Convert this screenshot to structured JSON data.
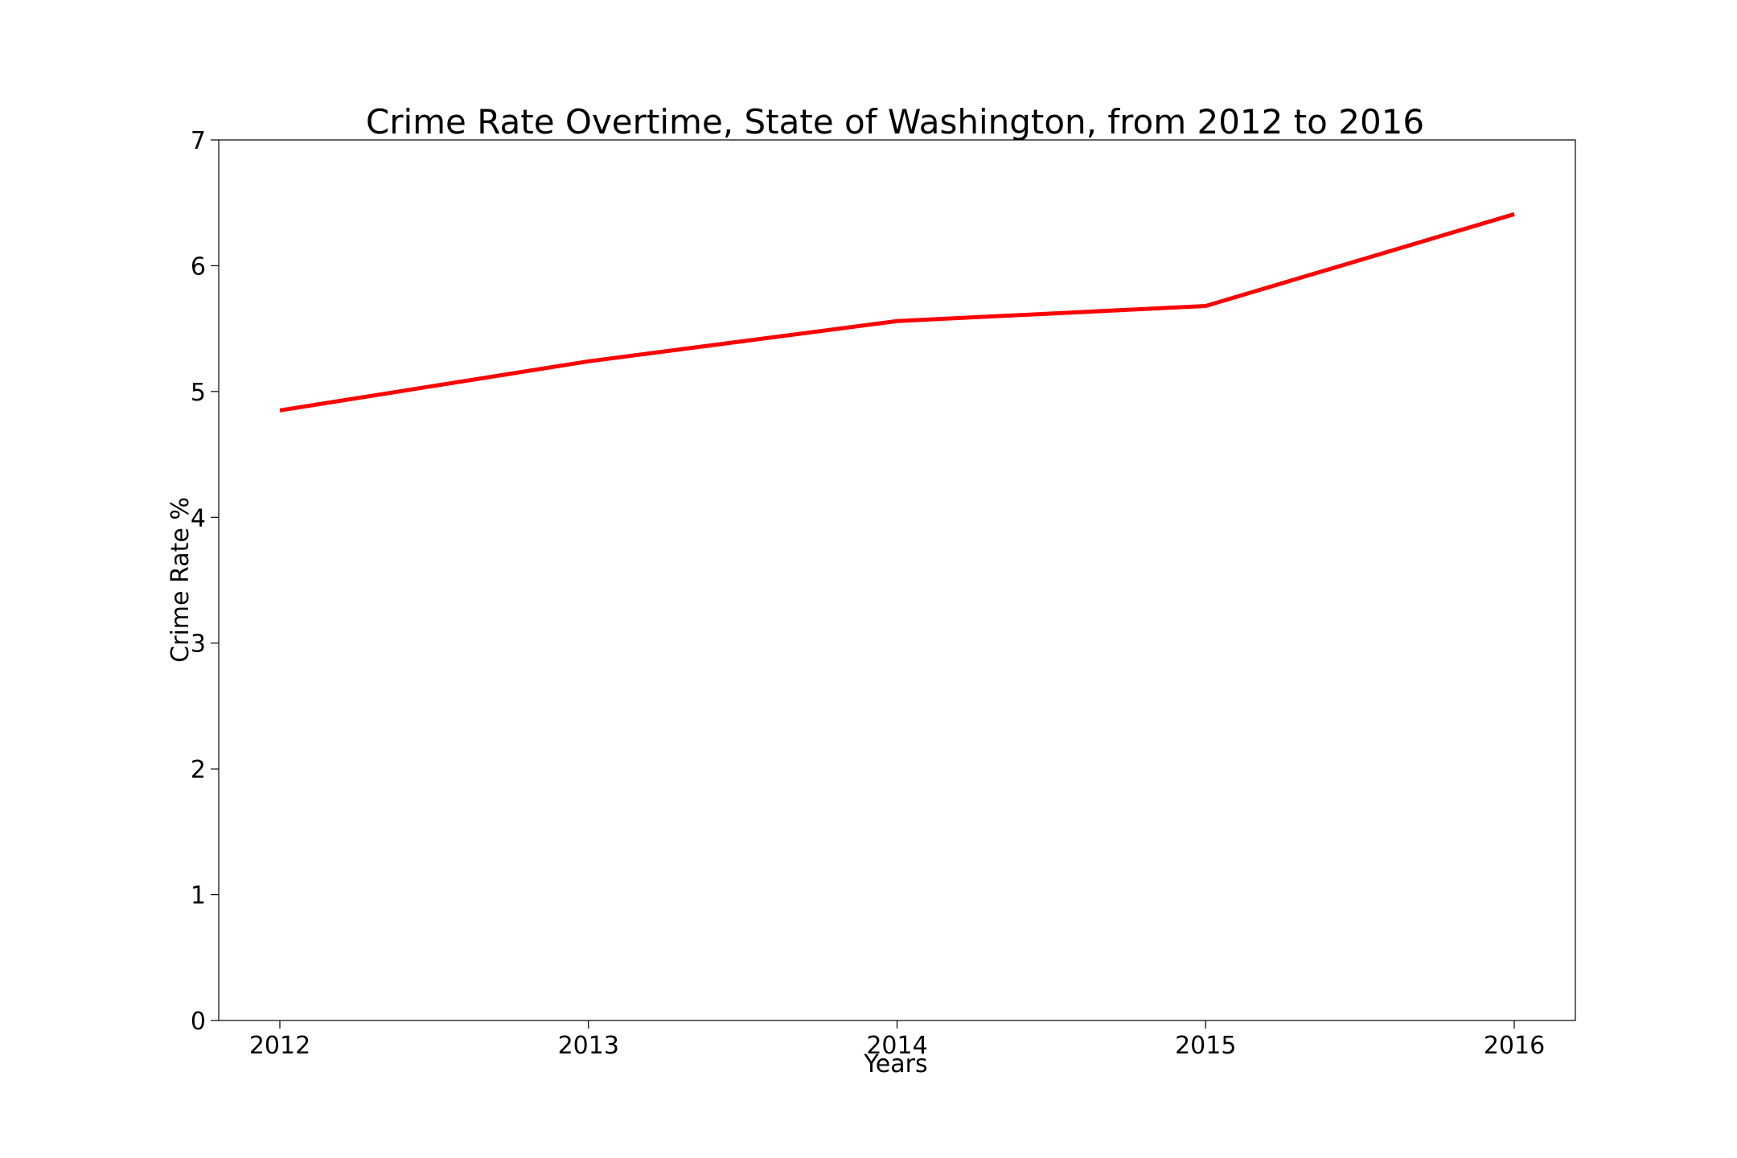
{
  "chart_data": {
    "type": "line",
    "title": "Crime Rate Overtime, State of Washington, from 2012 to 2016",
    "xlabel": "Years",
    "ylabel": "Crime Rate %",
    "x": [
      "2012",
      "2013",
      "2014",
      "2015",
      "2016"
    ],
    "series": [
      {
        "values": [
          4.85,
          5.24,
          5.56,
          5.68,
          6.41
        ],
        "color": "#ff0000"
      }
    ],
    "ylim": [
      0,
      7
    ],
    "yticks": [
      "0",
      "1",
      "2",
      "3",
      "4",
      "5",
      "6",
      "7"
    ],
    "grid": false,
    "legend": "none"
  }
}
